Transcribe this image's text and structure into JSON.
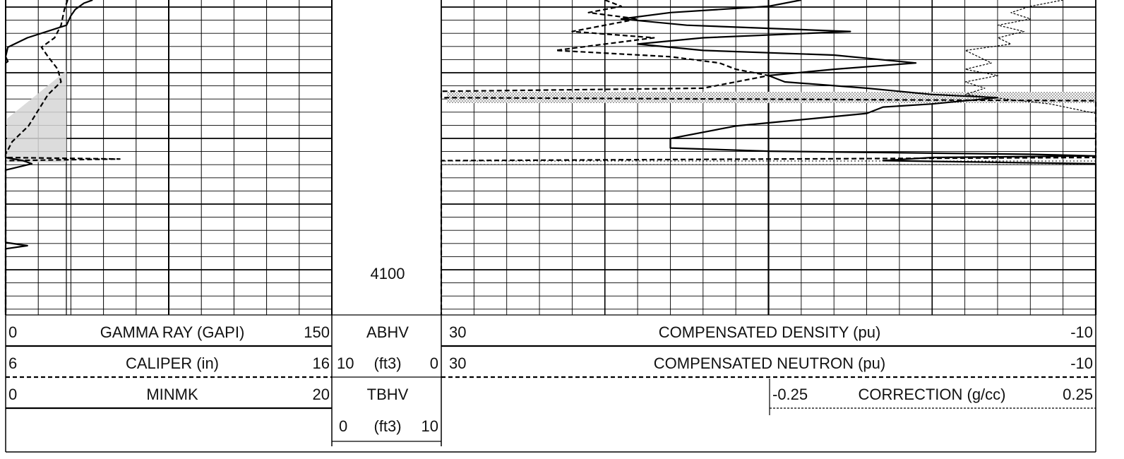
{
  "depth_label": "4100",
  "track1": {
    "gamma_ray": {
      "name": "GAMMA RAY (GAPI)",
      "min": "0",
      "max": "150"
    },
    "caliper": {
      "name": "CALIPER (in)",
      "min": "6",
      "max": "16"
    },
    "minmk": {
      "name": "MINMK",
      "min": "0",
      "max": "20"
    }
  },
  "track2": {
    "abhv": {
      "name": "ABHV",
      "min": "10",
      "unit": "(ft3)",
      "max": "0"
    },
    "tbhv": {
      "name": "TBHV",
      "min": "0",
      "unit": "(ft3)",
      "max": "10"
    }
  },
  "track3": {
    "density": {
      "name": "COMPENSATED DENSITY (pu)",
      "min": "30",
      "max": "-10"
    },
    "neutron": {
      "name": "COMPENSATED NEUTRON (pu)",
      "min": "30",
      "max": "-10"
    },
    "correction": {
      "name": "CORRECTION (g/cc)",
      "min": "-0.25",
      "max": "0.25"
    }
  },
  "chart_data": {
    "type": "line",
    "depth_unit": "ft",
    "depth_axis_label": "4100",
    "series": [
      {
        "name": "GAMMA RAY (GAPI)",
        "style": "solid",
        "scale": [
          0,
          150
        ],
        "depth_rel": [
          0.0,
          0.01,
          0.03,
          0.05,
          0.08,
          0.12,
          0.15,
          0.18,
          0.195,
          0.2,
          0.21,
          0.26,
          0.3,
          0.33,
          0.5,
          0.51,
          0.52,
          0.54,
          0.77,
          0.78,
          0.79,
          1.0
        ],
        "values": [
          40,
          36,
          32,
          30,
          28,
          10,
          1,
          0,
          1,
          0,
          0,
          0,
          0,
          0,
          0,
          8,
          12,
          0,
          0,
          10,
          0,
          0
        ]
      },
      {
        "name": "CALIPER (in)",
        "style": "dashed",
        "scale": [
          6,
          16
        ],
        "depth_rel": [
          0.0,
          0.03,
          0.08,
          0.12,
          0.15,
          0.18,
          0.22,
          0.26,
          0.3,
          0.35,
          0.4,
          0.45,
          0.49,
          0.5,
          0.505,
          0.51,
          0.52,
          1.0
        ],
        "values": [
          7.9,
          7.8,
          7.7,
          7.5,
          7.1,
          7.3,
          7.6,
          7.7,
          7.3,
          7.0,
          6.7,
          6.2,
          6.0,
          6.0,
          9.5,
          6.0,
          6.0,
          6.0
        ]
      },
      {
        "name": "COMPENSATED DENSITY (pu)",
        "style": "solid",
        "scale": [
          30,
          -10
        ],
        "depth_rel": [
          0.0,
          0.02,
          0.04,
          0.06,
          0.08,
          0.1,
          0.12,
          0.14,
          0.16,
          0.175,
          0.2,
          0.22,
          0.24,
          0.26,
          0.28,
          0.3,
          0.31,
          0.32,
          0.33,
          0.34,
          0.36,
          0.4,
          0.44,
          0.47,
          0.48,
          0.49,
          0.495,
          0.5,
          0.51,
          0.52,
          1.0
        ],
        "values": [
          8,
          10,
          16,
          19,
          15,
          5,
          14,
          18,
          14,
          6,
          1,
          6,
          10,
          9,
          4,
          0,
          -4,
          -2,
          0,
          3,
          4,
          12,
          16,
          16,
          10,
          -6,
          -10,
          0,
          3,
          -10,
          -10
        ]
      },
      {
        "name": "COMPENSATED NEUTRON (pu)",
        "style": "dashed",
        "scale": [
          30,
          -10
        ],
        "depth_rel": [
          0.0,
          0.02,
          0.04,
          0.06,
          0.08,
          0.1,
          0.12,
          0.14,
          0.16,
          0.18,
          0.2,
          0.22,
          0.24,
          0.26,
          0.28,
          0.29,
          0.3,
          0.31,
          0.32,
          0.33,
          0.5,
          0.51,
          0.52,
          1.0
        ],
        "values": [
          20,
          19,
          21,
          18,
          20,
          22,
          17,
          20,
          23,
          16,
          13,
          12,
          10,
          12,
          14,
          30,
          30,
          30,
          -10,
          -10,
          -10,
          30,
          30,
          30
        ]
      },
      {
        "name": "CORRECTION (g/cc)",
        "style": "thin-dashed",
        "scale": [
          -0.25,
          0.25
        ],
        "depth_rel": [
          0.0,
          0.02,
          0.04,
          0.06,
          0.08,
          0.1,
          0.12,
          0.14,
          0.16,
          0.18,
          0.2,
          0.22,
          0.24,
          0.26,
          0.28,
          0.3,
          0.33,
          0.36,
          0.38,
          1.0
        ],
        "values": [
          0.2,
          0.15,
          0.12,
          0.15,
          0.1,
          0.14,
          0.1,
          0.12,
          0.05,
          0.07,
          0.09,
          0.05,
          0.1,
          0.05,
          0.08,
          0.05,
          0.18,
          0.25,
          0.25,
          0.25
        ]
      }
    ]
  }
}
